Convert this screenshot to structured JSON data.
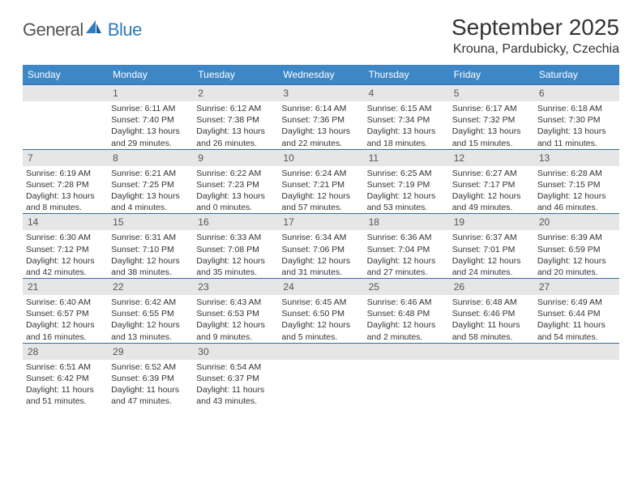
{
  "brand": {
    "text_general": "General",
    "text_blue": "Blue",
    "general_color": "#555555",
    "blue_color": "#2f7bbf"
  },
  "title": "September 2025",
  "location": "Krouna, Pardubicky, Czechia",
  "colors": {
    "header_bg": "#3d87c7",
    "header_text": "#ffffff",
    "daynum_bg": "#e6e6e6",
    "daynum_text": "#555555",
    "divider": "#2f6fa8",
    "body_text": "#333333",
    "page_bg": "#ffffff"
  },
  "typography": {
    "title_fontsize": 28,
    "location_fontsize": 16,
    "header_fontsize": 12,
    "daynum_fontsize": 12,
    "info_fontsize": 10.5
  },
  "day_headers": [
    "Sunday",
    "Monday",
    "Tuesday",
    "Wednesday",
    "Thursday",
    "Friday",
    "Saturday"
  ],
  "weeks": [
    [
      {
        "day": "",
        "sunrise": "",
        "sunset": "",
        "daylight": ""
      },
      {
        "day": "1",
        "sunrise": "Sunrise: 6:11 AM",
        "sunset": "Sunset: 7:40 PM",
        "daylight": "Daylight: 13 hours and 29 minutes."
      },
      {
        "day": "2",
        "sunrise": "Sunrise: 6:12 AM",
        "sunset": "Sunset: 7:38 PM",
        "daylight": "Daylight: 13 hours and 26 minutes."
      },
      {
        "day": "3",
        "sunrise": "Sunrise: 6:14 AM",
        "sunset": "Sunset: 7:36 PM",
        "daylight": "Daylight: 13 hours and 22 minutes."
      },
      {
        "day": "4",
        "sunrise": "Sunrise: 6:15 AM",
        "sunset": "Sunset: 7:34 PM",
        "daylight": "Daylight: 13 hours and 18 minutes."
      },
      {
        "day": "5",
        "sunrise": "Sunrise: 6:17 AM",
        "sunset": "Sunset: 7:32 PM",
        "daylight": "Daylight: 13 hours and 15 minutes."
      },
      {
        "day": "6",
        "sunrise": "Sunrise: 6:18 AM",
        "sunset": "Sunset: 7:30 PM",
        "daylight": "Daylight: 13 hours and 11 minutes."
      }
    ],
    [
      {
        "day": "7",
        "sunrise": "Sunrise: 6:19 AM",
        "sunset": "Sunset: 7:28 PM",
        "daylight": "Daylight: 13 hours and 8 minutes."
      },
      {
        "day": "8",
        "sunrise": "Sunrise: 6:21 AM",
        "sunset": "Sunset: 7:25 PM",
        "daylight": "Daylight: 13 hours and 4 minutes."
      },
      {
        "day": "9",
        "sunrise": "Sunrise: 6:22 AM",
        "sunset": "Sunset: 7:23 PM",
        "daylight": "Daylight: 13 hours and 0 minutes."
      },
      {
        "day": "10",
        "sunrise": "Sunrise: 6:24 AM",
        "sunset": "Sunset: 7:21 PM",
        "daylight": "Daylight: 12 hours and 57 minutes."
      },
      {
        "day": "11",
        "sunrise": "Sunrise: 6:25 AM",
        "sunset": "Sunset: 7:19 PM",
        "daylight": "Daylight: 12 hours and 53 minutes."
      },
      {
        "day": "12",
        "sunrise": "Sunrise: 6:27 AM",
        "sunset": "Sunset: 7:17 PM",
        "daylight": "Daylight: 12 hours and 49 minutes."
      },
      {
        "day": "13",
        "sunrise": "Sunrise: 6:28 AM",
        "sunset": "Sunset: 7:15 PM",
        "daylight": "Daylight: 12 hours and 46 minutes."
      }
    ],
    [
      {
        "day": "14",
        "sunrise": "Sunrise: 6:30 AM",
        "sunset": "Sunset: 7:12 PM",
        "daylight": "Daylight: 12 hours and 42 minutes."
      },
      {
        "day": "15",
        "sunrise": "Sunrise: 6:31 AM",
        "sunset": "Sunset: 7:10 PM",
        "daylight": "Daylight: 12 hours and 38 minutes."
      },
      {
        "day": "16",
        "sunrise": "Sunrise: 6:33 AM",
        "sunset": "Sunset: 7:08 PM",
        "daylight": "Daylight: 12 hours and 35 minutes."
      },
      {
        "day": "17",
        "sunrise": "Sunrise: 6:34 AM",
        "sunset": "Sunset: 7:06 PM",
        "daylight": "Daylight: 12 hours and 31 minutes."
      },
      {
        "day": "18",
        "sunrise": "Sunrise: 6:36 AM",
        "sunset": "Sunset: 7:04 PM",
        "daylight": "Daylight: 12 hours and 27 minutes."
      },
      {
        "day": "19",
        "sunrise": "Sunrise: 6:37 AM",
        "sunset": "Sunset: 7:01 PM",
        "daylight": "Daylight: 12 hours and 24 minutes."
      },
      {
        "day": "20",
        "sunrise": "Sunrise: 6:39 AM",
        "sunset": "Sunset: 6:59 PM",
        "daylight": "Daylight: 12 hours and 20 minutes."
      }
    ],
    [
      {
        "day": "21",
        "sunrise": "Sunrise: 6:40 AM",
        "sunset": "Sunset: 6:57 PM",
        "daylight": "Daylight: 12 hours and 16 minutes."
      },
      {
        "day": "22",
        "sunrise": "Sunrise: 6:42 AM",
        "sunset": "Sunset: 6:55 PM",
        "daylight": "Daylight: 12 hours and 13 minutes."
      },
      {
        "day": "23",
        "sunrise": "Sunrise: 6:43 AM",
        "sunset": "Sunset: 6:53 PM",
        "daylight": "Daylight: 12 hours and 9 minutes."
      },
      {
        "day": "24",
        "sunrise": "Sunrise: 6:45 AM",
        "sunset": "Sunset: 6:50 PM",
        "daylight": "Daylight: 12 hours and 5 minutes."
      },
      {
        "day": "25",
        "sunrise": "Sunrise: 6:46 AM",
        "sunset": "Sunset: 6:48 PM",
        "daylight": "Daylight: 12 hours and 2 minutes."
      },
      {
        "day": "26",
        "sunrise": "Sunrise: 6:48 AM",
        "sunset": "Sunset: 6:46 PM",
        "daylight": "Daylight: 11 hours and 58 minutes."
      },
      {
        "day": "27",
        "sunrise": "Sunrise: 6:49 AM",
        "sunset": "Sunset: 6:44 PM",
        "daylight": "Daylight: 11 hours and 54 minutes."
      }
    ],
    [
      {
        "day": "28",
        "sunrise": "Sunrise: 6:51 AM",
        "sunset": "Sunset: 6:42 PM",
        "daylight": "Daylight: 11 hours and 51 minutes."
      },
      {
        "day": "29",
        "sunrise": "Sunrise: 6:52 AM",
        "sunset": "Sunset: 6:39 PM",
        "daylight": "Daylight: 11 hours and 47 minutes."
      },
      {
        "day": "30",
        "sunrise": "Sunrise: 6:54 AM",
        "sunset": "Sunset: 6:37 PM",
        "daylight": "Daylight: 11 hours and 43 minutes."
      },
      {
        "day": "",
        "sunrise": "",
        "sunset": "",
        "daylight": ""
      },
      {
        "day": "",
        "sunrise": "",
        "sunset": "",
        "daylight": ""
      },
      {
        "day": "",
        "sunrise": "",
        "sunset": "",
        "daylight": ""
      },
      {
        "day": "",
        "sunrise": "",
        "sunset": "",
        "daylight": ""
      }
    ]
  ]
}
